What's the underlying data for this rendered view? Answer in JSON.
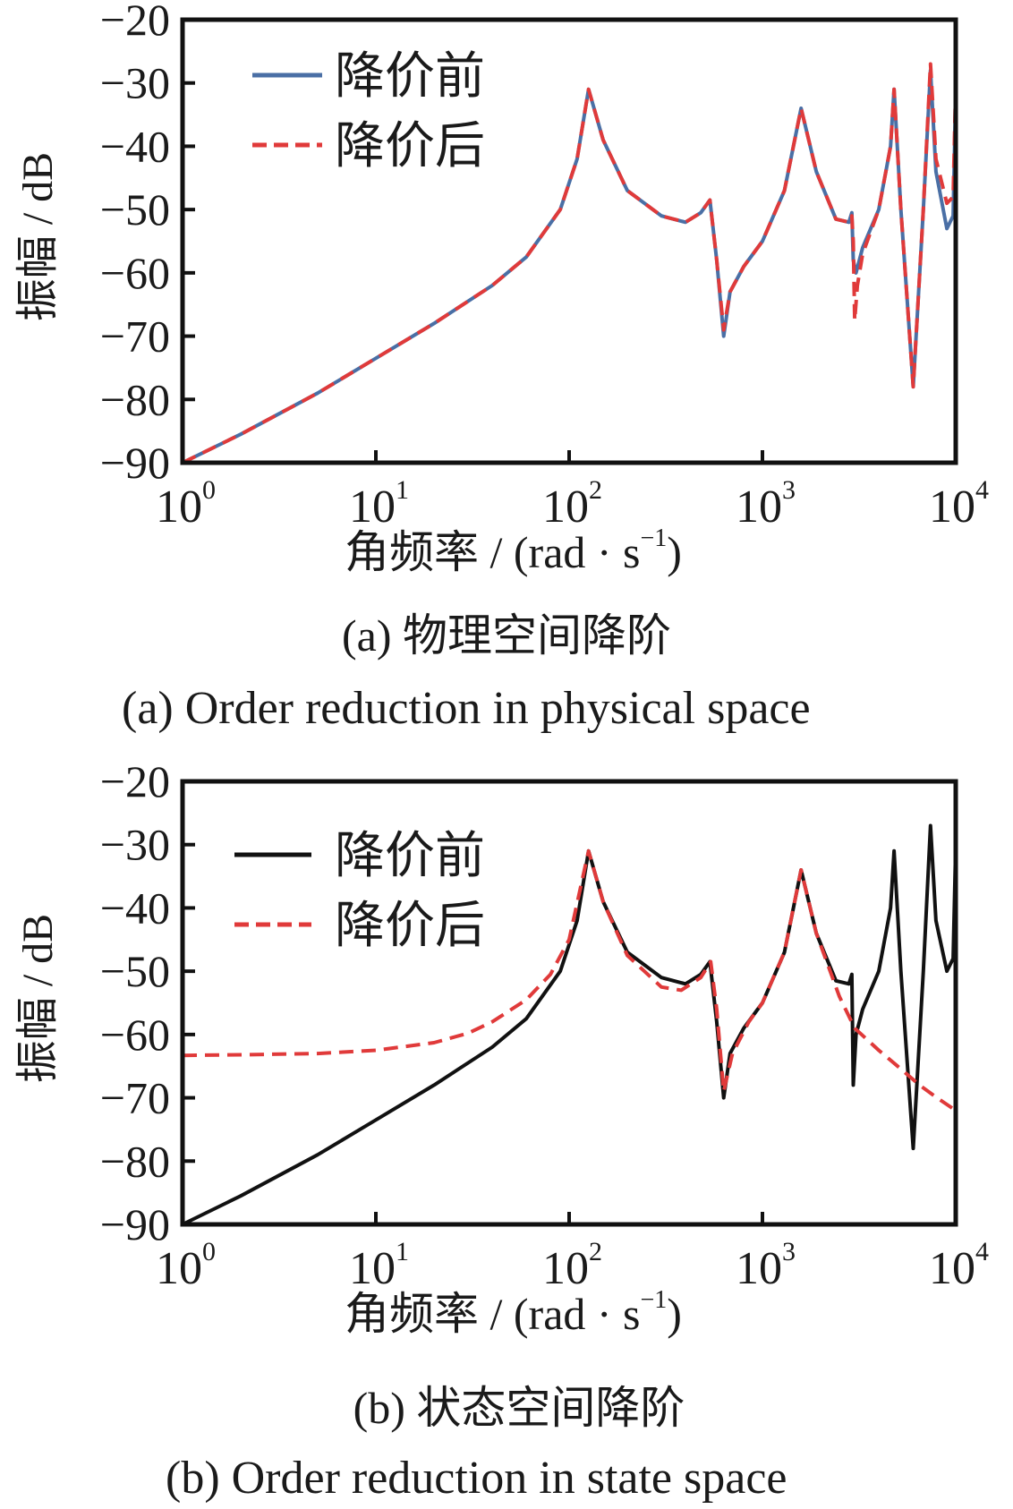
{
  "chart_data": [
    {
      "type": "line",
      "panel": "a",
      "ylabel": "振幅 / dB",
      "xlabel": "角频率 / (rad · s",
      "xlabel_sup": "-1",
      "xlabel_end": ")",
      "caption_cn": "(a)  物理空间降阶",
      "caption_en": "(a)  Order reduction in physical space",
      "xscale": "log",
      "xlim": [
        1,
        10000
      ],
      "ylim": [
        -90,
        -20
      ],
      "xticks": [
        {
          "base": "10",
          "exp": "0"
        },
        {
          "base": "10",
          "exp": "1"
        },
        {
          "base": "10",
          "exp": "2"
        },
        {
          "base": "10",
          "exp": "3"
        },
        {
          "base": "10",
          "exp": "4"
        }
      ],
      "yticks": [
        "-90",
        "-80",
        "-70",
        "-60",
        "-50",
        "-40",
        "-30",
        "-20"
      ],
      "legend_position": "top-left",
      "series": [
        {
          "name": "降价前",
          "color": "#4a6fa5",
          "style": "solid",
          "x": [
            1,
            2,
            5,
            10,
            20,
            40,
            60,
            90,
            110,
            126,
            150,
            200,
            300,
            400,
            480,
            535,
            580,
            630,
            680,
            800,
            1000,
            1300,
            1585,
            1900,
            2400,
            2800,
            2900,
            2950,
            3050,
            3300,
            4000,
            4600,
            4800,
            5200,
            6030,
            6800,
            7400,
            7900,
            9000,
            9700,
            10000
          ],
          "y": [
            -90,
            -85.5,
            -79,
            -73.5,
            -68,
            -62,
            -57.5,
            -50,
            -42,
            -31,
            -39,
            -47,
            -51,
            -52,
            -50.5,
            -48.5,
            -58,
            -70,
            -63,
            -59,
            -55,
            -47,
            -34,
            -44,
            -51.5,
            -52,
            -50.5,
            -58,
            -60,
            -56,
            -50,
            -40,
            -31,
            -50,
            -78,
            -50,
            -28,
            -44,
            -53,
            -51,
            -31
          ]
        },
        {
          "name": "降价后",
          "color": "#e03a3a",
          "style": "dashed",
          "x": [
            1,
            2,
            5,
            10,
            20,
            40,
            60,
            90,
            110,
            126,
            150,
            200,
            300,
            400,
            480,
            535,
            580,
            630,
            680,
            800,
            1000,
            1300,
            1585,
            1900,
            2400,
            2800,
            2900,
            2950,
            3000,
            3100,
            3300,
            4000,
            4600,
            4800,
            5200,
            6030,
            6800,
            7400,
            7900,
            9000,
            9700,
            10000
          ],
          "y": [
            -90,
            -85.5,
            -79,
            -73.5,
            -68,
            -62,
            -57.5,
            -50,
            -42,
            -31,
            -39,
            -47,
            -51,
            -52,
            -50.5,
            -48.5,
            -58,
            -69,
            -63,
            -59,
            -55,
            -47,
            -34,
            -44,
            -51.5,
            -52,
            -51,
            -55,
            -67.5,
            -62,
            -57,
            -50,
            -40,
            -31,
            -50,
            -78,
            -50,
            -27,
            -42,
            -49,
            -48,
            -30
          ]
        }
      ]
    },
    {
      "type": "line",
      "panel": "b",
      "ylabel": "振幅 / dB",
      "xlabel": "角频率 / (rad · s",
      "xlabel_sup": "-1",
      "xlabel_end": ")",
      "caption_cn": "(b)  状态空间降阶",
      "caption_en": "(b)  Order reduction in state space",
      "xscale": "log",
      "xlim": [
        1,
        10000
      ],
      "ylim": [
        -90,
        -20
      ],
      "xticks": [
        {
          "base": "10",
          "exp": "0"
        },
        {
          "base": "10",
          "exp": "1"
        },
        {
          "base": "10",
          "exp": "2"
        },
        {
          "base": "10",
          "exp": "3"
        },
        {
          "base": "10",
          "exp": "4"
        }
      ],
      "yticks": [
        "-90",
        "-80",
        "-70",
        "-60",
        "-50",
        "-40",
        "-30",
        "-20"
      ],
      "legend_position": "top-left",
      "series": [
        {
          "name": "降价前",
          "color": "#111111",
          "style": "solid",
          "x": [
            1,
            2,
            5,
            10,
            20,
            40,
            60,
            90,
            110,
            126,
            150,
            200,
            300,
            400,
            480,
            535,
            580,
            630,
            680,
            800,
            1000,
            1300,
            1585,
            1900,
            2400,
            2800,
            2900,
            2950,
            3050,
            3300,
            4000,
            4600,
            4800,
            5200,
            6030,
            6800,
            7400,
            7900,
            9000,
            9700,
            10000
          ],
          "y": [
            -90,
            -85.5,
            -79,
            -73.5,
            -68,
            -62,
            -57.5,
            -50,
            -42,
            -31,
            -39,
            -47,
            -51,
            -52,
            -50.5,
            -48.5,
            -58,
            -70,
            -63,
            -59,
            -55,
            -47,
            -34,
            -44,
            -51.5,
            -52,
            -50.5,
            -68,
            -60,
            -56,
            -50,
            -40,
            -31,
            -50,
            -78,
            -50,
            -27,
            -42,
            -50,
            -48,
            -30
          ]
        },
        {
          "name": "降价后",
          "color": "#e03a3a",
          "style": "dashed",
          "x": [
            1,
            2,
            5,
            10,
            20,
            30,
            40,
            60,
            80,
            100,
            126,
            150,
            200,
            300,
            380,
            480,
            540,
            580,
            630,
            700,
            850,
            1000,
            1300,
            1585,
            1900,
            2500,
            3000,
            4000,
            5000,
            6500,
            8000,
            10000
          ],
          "y": [
            -63.3,
            -63.2,
            -63,
            -62.5,
            -61.3,
            -59.8,
            -58,
            -54.5,
            -50.5,
            -45,
            -31,
            -39,
            -47.5,
            -52.5,
            -53,
            -51,
            -48.5,
            -56,
            -69,
            -63,
            -58,
            -55,
            -47,
            -34,
            -44,
            -54,
            -59,
            -62.5,
            -65,
            -68,
            -70,
            -72
          ]
        }
      ]
    }
  ]
}
